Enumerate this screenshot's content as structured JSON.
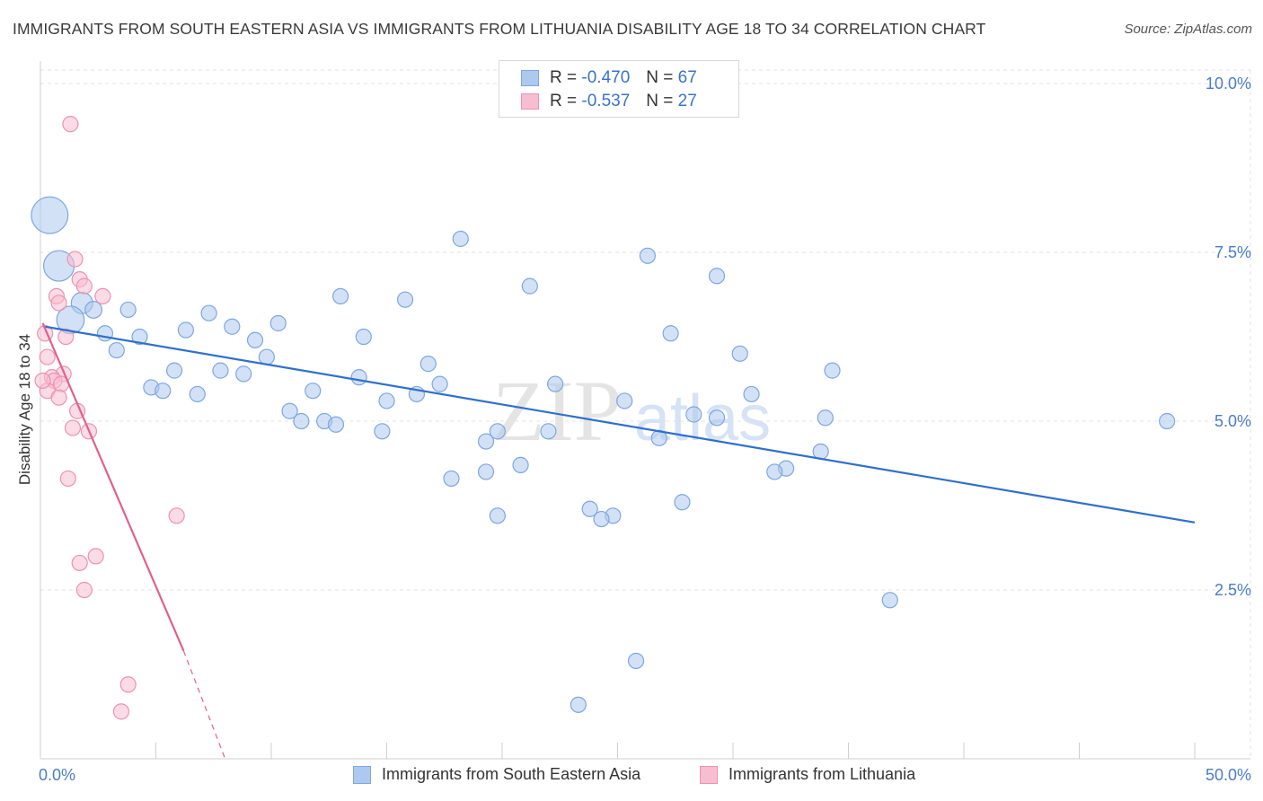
{
  "header": {
    "title": "IMMIGRANTS FROM SOUTH EASTERN ASIA VS IMMIGRANTS FROM LITHUANIA DISABILITY AGE 18 TO 34 CORRELATION CHART",
    "source": "Source: ZipAtlas.com"
  },
  "legend": {
    "rows": [
      {
        "r_label": "R =",
        "r_value": "-0.470",
        "n_label": "N =",
        "n_value": "67"
      },
      {
        "r_label": "R =",
        "r_value": "-0.537",
        "n_label": "N =",
        "n_value": "27"
      }
    ]
  },
  "bottom_legend": {
    "series_a": "Immigrants from South Eastern Asia",
    "series_b": "Immigrants from Lithuania"
  },
  "colors": {
    "blue_fill": "#aec9ef",
    "blue_stroke": "#7da7e0",
    "blue_line": "#2f6fcf",
    "pink_fill": "#f7bdd0",
    "pink_stroke": "#eb93b2",
    "pink_line": "#e0608f",
    "grid": "#e3e3e3",
    "tick_text": "#4a7cc9"
  },
  "chart_data": {
    "type": "scatter",
    "title": "IMMIGRANTS FROM SOUTH EASTERN ASIA VS IMMIGRANTS FROM LITHUANIA DISABILITY AGE 18 TO 34 CORRELATION CHART",
    "xlabel": "",
    "ylabel": "Disability Age 18 to 34",
    "xlim": [
      0,
      50
    ],
    "ylim": [
      0,
      10.2
    ],
    "x_tick_labels": [
      "0.0%",
      "50.0%"
    ],
    "y_ticks": [
      2.5,
      5.0,
      7.5,
      10.0
    ],
    "y_tick_labels": [
      "2.5%",
      "5.0%",
      "7.5%",
      "10.0%"
    ],
    "grid": true,
    "watermark": "ZIPatlas",
    "series": [
      {
        "name": "Immigrants from South Eastern Asia",
        "R": -0.47,
        "N": 67,
        "trend": {
          "x0": 0.2,
          "y0": 6.4,
          "x1": 50.0,
          "y1": 3.5
        },
        "points": [
          [
            0.4,
            8.05,
            2.4
          ],
          [
            0.8,
            7.3,
            2.0
          ],
          [
            1.8,
            6.75,
            1.4
          ],
          [
            1.3,
            6.5,
            1.8
          ],
          [
            2.3,
            6.65,
            1.1
          ],
          [
            3.8,
            6.65,
            1.0
          ],
          [
            2.8,
            6.3,
            1.0
          ],
          [
            4.3,
            6.25,
            1.0
          ],
          [
            3.3,
            6.05,
            1.0
          ],
          [
            7.3,
            6.6,
            1.0
          ],
          [
            6.3,
            6.35,
            1.0
          ],
          [
            8.3,
            6.4,
            1.0
          ],
          [
            9.3,
            6.2,
            1.0
          ],
          [
            10.3,
            6.45,
            1.0
          ],
          [
            9.8,
            5.95,
            1.0
          ],
          [
            13.0,
            6.85,
            1.0
          ],
          [
            15.8,
            6.8,
            1.0
          ],
          [
            18.2,
            7.7,
            1.0
          ],
          [
            21.2,
            7.0,
            1.0
          ],
          [
            14.0,
            6.25,
            1.0
          ],
          [
            5.8,
            5.75,
            1.0
          ],
          [
            7.8,
            5.75,
            1.0
          ],
          [
            8.8,
            5.7,
            1.0
          ],
          [
            4.8,
            5.5,
            1.0
          ],
          [
            5.3,
            5.45,
            1.0
          ],
          [
            6.8,
            5.4,
            1.0
          ],
          [
            11.8,
            5.45,
            1.0
          ],
          [
            13.8,
            5.65,
            1.0
          ],
          [
            16.8,
            5.85,
            1.0
          ],
          [
            17.3,
            5.55,
            1.0
          ],
          [
            16.3,
            5.4,
            1.0
          ],
          [
            15.0,
            5.3,
            1.0
          ],
          [
            10.8,
            5.15,
            1.0
          ],
          [
            11.3,
            5.0,
            1.0
          ],
          [
            12.3,
            5.0,
            1.0
          ],
          [
            12.8,
            4.95,
            1.0
          ],
          [
            14.8,
            4.85,
            1.0
          ],
          [
            19.8,
            4.85,
            1.0
          ],
          [
            22.3,
            5.55,
            1.0
          ],
          [
            22.0,
            4.85,
            1.0
          ],
          [
            25.3,
            5.3,
            1.0
          ],
          [
            19.3,
            4.7,
            1.0
          ],
          [
            26.3,
            7.45,
            1.0
          ],
          [
            27.3,
            6.3,
            1.0
          ],
          [
            29.3,
            7.15,
            1.0
          ],
          [
            28.3,
            5.1,
            1.0
          ],
          [
            29.3,
            5.05,
            1.0
          ],
          [
            30.3,
            6.0,
            1.0
          ],
          [
            30.8,
            5.4,
            1.0
          ],
          [
            34.3,
            5.75,
            1.0
          ],
          [
            34.0,
            5.05,
            1.0
          ],
          [
            26.8,
            4.75,
            1.0
          ],
          [
            33.8,
            4.55,
            1.0
          ],
          [
            32.3,
            4.3,
            1.0
          ],
          [
            31.8,
            4.25,
            1.0
          ],
          [
            17.8,
            4.15,
            1.0
          ],
          [
            19.3,
            4.25,
            1.0
          ],
          [
            20.8,
            4.35,
            1.0
          ],
          [
            19.8,
            3.6,
            1.0
          ],
          [
            23.8,
            3.7,
            1.0
          ],
          [
            24.8,
            3.6,
            1.0
          ],
          [
            24.3,
            3.55,
            1.0
          ],
          [
            27.8,
            3.8,
            1.0
          ],
          [
            48.8,
            5.0,
            1.0
          ],
          [
            36.8,
            2.35,
            1.0
          ],
          [
            25.8,
            1.45,
            1.0
          ],
          [
            23.3,
            0.8,
            1.0
          ]
        ]
      },
      {
        "name": "Immigrants from Lithuania",
        "R": -0.537,
        "N": 27,
        "trend": {
          "x0": 0.1,
          "y0": 6.45,
          "x1": 6.2,
          "y1": 1.6
        },
        "trend_dashed": {
          "x0": 6.2,
          "y0": 1.6,
          "x1": 8.0,
          "y1": 0.0
        },
        "points": [
          [
            1.3,
            9.4,
            1.0
          ],
          [
            1.5,
            7.4,
            1.0
          ],
          [
            1.7,
            7.1,
            1.0
          ],
          [
            1.9,
            7.0,
            1.0
          ],
          [
            2.7,
            6.85,
            1.0
          ],
          [
            0.7,
            6.85,
            1.0
          ],
          [
            0.8,
            6.75,
            1.0
          ],
          [
            0.2,
            6.3,
            1.0
          ],
          [
            1.1,
            6.25,
            1.0
          ],
          [
            0.3,
            5.95,
            1.0
          ],
          [
            1.0,
            5.7,
            1.0
          ],
          [
            0.5,
            5.65,
            1.0
          ],
          [
            0.6,
            5.6,
            1.0
          ],
          [
            0.9,
            5.55,
            1.0
          ],
          [
            0.3,
            5.45,
            1.0
          ],
          [
            0.8,
            5.35,
            1.0
          ],
          [
            1.6,
            5.15,
            1.0
          ],
          [
            1.4,
            4.9,
            1.0
          ],
          [
            2.1,
            4.85,
            1.0
          ],
          [
            1.2,
            4.15,
            1.0
          ],
          [
            5.9,
            3.6,
            1.0
          ],
          [
            2.4,
            3.0,
            1.0
          ],
          [
            1.7,
            2.9,
            1.0
          ],
          [
            1.9,
            2.5,
            1.0
          ],
          [
            3.8,
            1.1,
            1.0
          ],
          [
            3.5,
            0.7,
            1.0
          ],
          [
            0.1,
            5.6,
            1.0
          ]
        ]
      }
    ]
  }
}
